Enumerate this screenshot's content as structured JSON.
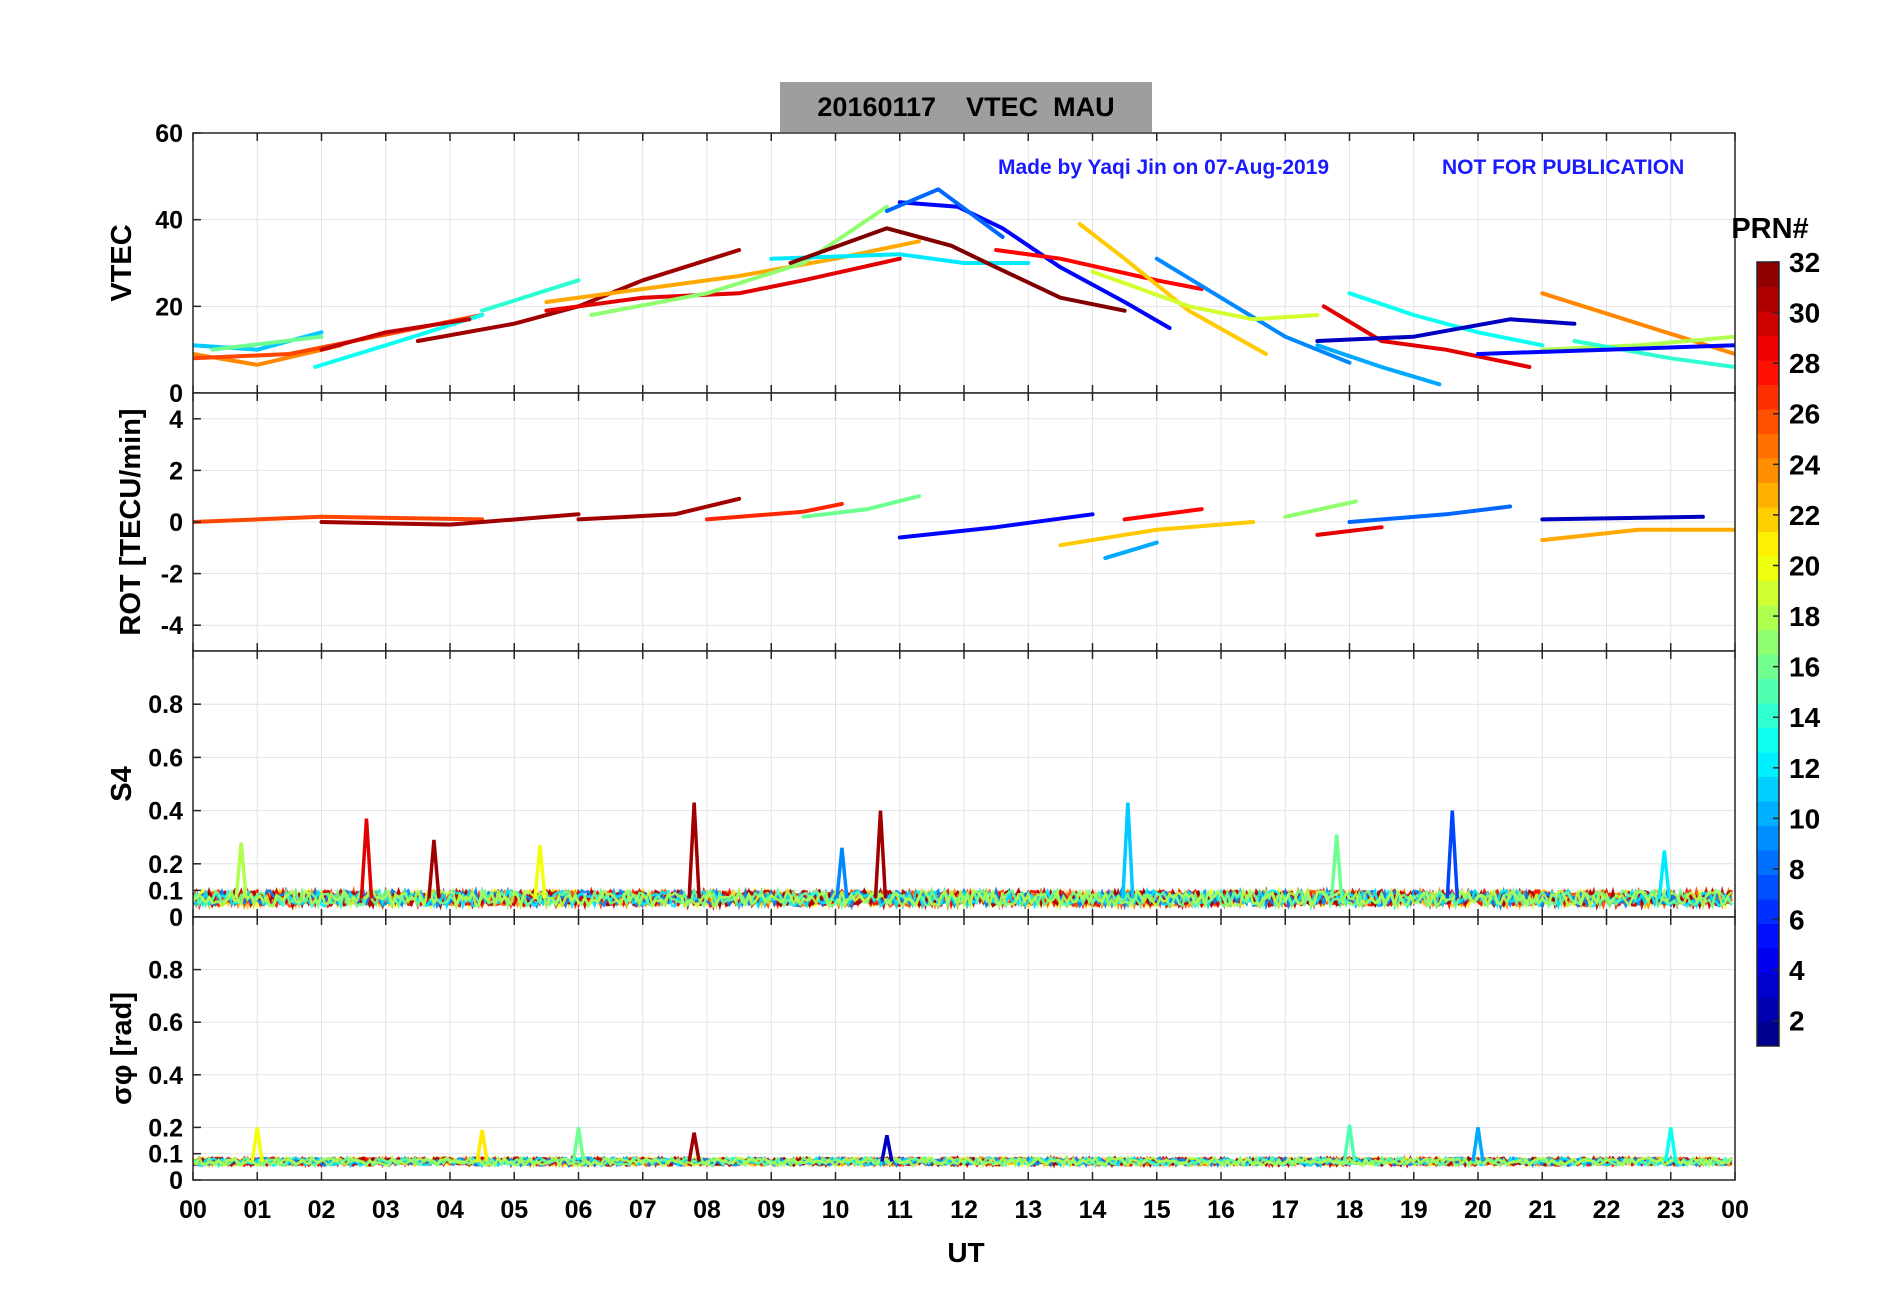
{
  "title": {
    "date": "20160117",
    "quantity": "VTEC",
    "station": "MAU"
  },
  "watermark": {
    "made_by": "Made by Yaqi Jin on 07-Aug-2019",
    "notice": "NOT FOR PUBLICATION"
  },
  "chart_data": [
    {
      "type": "line",
      "panel": "VTEC",
      "ylabel": "VTEC",
      "ylim": [
        0,
        60
      ],
      "yticks": [
        0,
        20,
        40,
        60
      ],
      "grid": true,
      "series": [
        {
          "prn": 11,
          "x": [
            0.0,
            1.0,
            2.0
          ],
          "y": [
            11,
            10,
            14
          ]
        },
        {
          "prn": 24,
          "x": [
            0.0,
            1.0,
            2.3
          ],
          "y": [
            9,
            6.5,
            11
          ]
        },
        {
          "prn": 26,
          "x": [
            0.0,
            1.5,
            3.5,
            4.5
          ],
          "y": [
            8,
            9,
            15,
            18
          ]
        },
        {
          "prn": 16,
          "x": [
            0.3,
            2.0
          ],
          "y": [
            10,
            13
          ]
        },
        {
          "prn": 13,
          "x": [
            1.9,
            3.0,
            4.5
          ],
          "y": [
            6,
            11,
            18
          ]
        },
        {
          "prn": 30,
          "x": [
            2.0,
            3.0,
            4.3
          ],
          "y": [
            10,
            14,
            17
          ]
        },
        {
          "prn": 14,
          "x": [
            4.5,
            6.0
          ],
          "y": [
            19,
            26
          ]
        },
        {
          "prn": 31,
          "x": [
            3.5,
            5.0,
            6.0,
            7.0,
            8.5
          ],
          "y": [
            12,
            16,
            20,
            26,
            33
          ]
        },
        {
          "prn": 29,
          "x": [
            5.5,
            7.0,
            8.5,
            9.5,
            11.0
          ],
          "y": [
            19,
            22,
            23,
            26,
            31
          ]
        },
        {
          "prn": 23,
          "x": [
            5.5,
            7.0,
            8.5,
            10.0,
            11.3
          ],
          "y": [
            21,
            24,
            27,
            31,
            35
          ]
        },
        {
          "prn": 17,
          "x": [
            6.2,
            8.0,
            9.5,
            10.8
          ],
          "y": [
            18,
            23,
            30,
            43
          ]
        },
        {
          "prn": 12,
          "x": [
            9.0,
            11.0,
            12.0,
            13.0
          ],
          "y": [
            31,
            32,
            30,
            30
          ]
        },
        {
          "prn": 32,
          "x": [
            9.3,
            10.8,
            11.8,
            12.5,
            13.5,
            14.5
          ],
          "y": [
            30,
            38,
            34,
            29,
            22,
            19
          ]
        },
        {
          "prn": 5,
          "x": [
            11.0,
            11.9,
            12.6,
            13.5,
            14.5,
            15.2
          ],
          "y": [
            44,
            43,
            38,
            29,
            21,
            15
          ]
        },
        {
          "prn": 8,
          "x": [
            10.8,
            11.6,
            12.6
          ],
          "y": [
            42,
            47,
            36
          ]
        },
        {
          "prn": 28,
          "x": [
            12.5,
            13.5,
            15.0,
            15.7
          ],
          "y": [
            33,
            31,
            26,
            24
          ]
        },
        {
          "prn": 22,
          "x": [
            13.8,
            14.5,
            15.5,
            16.7
          ],
          "y": [
            39,
            31,
            19,
            9
          ]
        },
        {
          "prn": 9,
          "x": [
            15.0,
            16.0,
            17.0,
            18.0
          ],
          "y": [
            31,
            22,
            13,
            7
          ]
        },
        {
          "prn": 19,
          "x": [
            14.0,
            15.5,
            16.5,
            17.5
          ],
          "y": [
            28,
            20,
            17,
            18
          ]
        },
        {
          "prn": 13,
          "x": [
            18.0,
            19.0,
            20.0,
            21.0
          ],
          "y": [
            23,
            18,
            14,
            11
          ]
        },
        {
          "prn": 29,
          "x": [
            17.6,
            18.5,
            19.5,
            20.8
          ],
          "y": [
            20,
            12,
            10,
            6
          ]
        },
        {
          "prn": 3,
          "x": [
            17.5,
            19.0,
            20.5,
            21.5
          ],
          "y": [
            12,
            13,
            17,
            16
          ]
        },
        {
          "prn": 10,
          "x": [
            17.5,
            18.5,
            19.4
          ],
          "y": [
            11,
            6,
            2
          ]
        },
        {
          "prn": 24,
          "x": [
            21.0,
            22.5,
            24.0
          ],
          "y": [
            23,
            16,
            9
          ]
        },
        {
          "prn": 18,
          "x": [
            21.0,
            22.5,
            24.0
          ],
          "y": [
            10,
            11,
            13
          ]
        },
        {
          "prn": 14,
          "x": [
            21.5,
            23.0,
            24.0
          ],
          "y": [
            12,
            8,
            6
          ]
        },
        {
          "prn": 5,
          "x": [
            20.0,
            22.0,
            24.0
          ],
          "y": [
            9,
            10,
            11
          ]
        }
      ]
    },
    {
      "type": "line",
      "panel": "ROT",
      "ylabel": "ROT [TECU/min]",
      "ylim": [
        -5,
        5
      ],
      "yticks": [
        -4,
        -2,
        0,
        2,
        4
      ],
      "grid": true,
      "series": [
        {
          "prn": 26,
          "x": [
            0.0,
            2.0,
            4.5
          ],
          "y": [
            0.0,
            0.2,
            0.1
          ]
        },
        {
          "prn": 31,
          "x": [
            2.0,
            4.0,
            6.0
          ],
          "y": [
            0.0,
            -0.1,
            0.3
          ]
        },
        {
          "prn": 31,
          "x": [
            6.0,
            7.5,
            8.5
          ],
          "y": [
            0.1,
            0.3,
            0.9
          ]
        },
        {
          "prn": 27,
          "x": [
            8.0,
            9.5,
            10.1
          ],
          "y": [
            0.1,
            0.4,
            0.7
          ]
        },
        {
          "prn": 16,
          "x": [
            9.5,
            10.5,
            11.3
          ],
          "y": [
            0.2,
            0.5,
            1.0
          ]
        },
        {
          "prn": 5,
          "x": [
            11.0,
            12.5,
            14.0
          ],
          "y": [
            -0.6,
            -0.2,
            0.3
          ]
        },
        {
          "prn": 22,
          "x": [
            13.5,
            15.0,
            16.5
          ],
          "y": [
            -0.9,
            -0.3,
            0.0
          ]
        },
        {
          "prn": 10,
          "x": [
            14.2,
            15.0
          ],
          "y": [
            -1.4,
            -0.8
          ]
        },
        {
          "prn": 28,
          "x": [
            14.5,
            15.7
          ],
          "y": [
            0.1,
            0.5
          ]
        },
        {
          "prn": 17,
          "x": [
            17.0,
            18.1
          ],
          "y": [
            0.2,
            0.8
          ]
        },
        {
          "prn": 29,
          "x": [
            17.5,
            18.5
          ],
          "y": [
            -0.5,
            -0.2
          ]
        },
        {
          "prn": 8,
          "x": [
            18.0,
            19.5,
            20.5
          ],
          "y": [
            0.0,
            0.3,
            0.6
          ]
        },
        {
          "prn": 23,
          "x": [
            21.0,
            22.5,
            24.0
          ],
          "y": [
            -0.7,
            -0.3,
            -0.3
          ]
        },
        {
          "prn": 3,
          "x": [
            21.0,
            23.5
          ],
          "y": [
            0.1,
            0.2
          ]
        }
      ]
    },
    {
      "type": "line",
      "panel": "S4",
      "ylabel": "S4",
      "ylim": [
        0,
        1
      ],
      "yticks": [
        0,
        0.1,
        0.2,
        0.4,
        0.6,
        0.8
      ],
      "grid": true,
      "baseline": 0.07,
      "spikes": [
        {
          "prn": 18,
          "x": 0.75,
          "y": 0.28
        },
        {
          "prn": 29,
          "x": 2.7,
          "y": 0.37
        },
        {
          "prn": 31,
          "x": 3.75,
          "y": 0.29
        },
        {
          "prn": 20,
          "x": 5.4,
          "y": 0.27
        },
        {
          "prn": 31,
          "x": 7.8,
          "y": 0.43
        },
        {
          "prn": 9,
          "x": 10.1,
          "y": 0.26
        },
        {
          "prn": 31,
          "x": 10.7,
          "y": 0.4
        },
        {
          "prn": 11,
          "x": 14.55,
          "y": 0.43
        },
        {
          "prn": 16,
          "x": 17.8,
          "y": 0.31
        },
        {
          "prn": 7,
          "x": 19.6,
          "y": 0.4
        },
        {
          "prn": 12,
          "x": 22.9,
          "y": 0.25
        }
      ]
    },
    {
      "type": "line",
      "panel": "sigma_phi",
      "ylabel": "σφ [rad]",
      "ylim": [
        0,
        1
      ],
      "yticks": [
        0,
        0.1,
        0.2,
        0.4,
        0.6,
        0.8
      ],
      "grid": true,
      "baseline": 0.07,
      "spikes": [
        {
          "prn": 20,
          "x": 1.0,
          "y": 0.2
        },
        {
          "prn": 21,
          "x": 4.5,
          "y": 0.19
        },
        {
          "prn": 16,
          "x": 6.0,
          "y": 0.2
        },
        {
          "prn": 31,
          "x": 7.8,
          "y": 0.18
        },
        {
          "prn": 3,
          "x": 10.8,
          "y": 0.17
        },
        {
          "prn": 15,
          "x": 18.0,
          "y": 0.21
        },
        {
          "prn": 10,
          "x": 20.0,
          "y": 0.2
        },
        {
          "prn": 13,
          "x": 23.0,
          "y": 0.2
        }
      ]
    }
  ],
  "x_axis": {
    "label": "UT",
    "ticks": [
      "00",
      "01",
      "02",
      "03",
      "04",
      "05",
      "06",
      "07",
      "08",
      "09",
      "10",
      "11",
      "12",
      "13",
      "14",
      "15",
      "16",
      "17",
      "18",
      "19",
      "20",
      "21",
      "22",
      "23",
      "00"
    ],
    "range_hours": [
      0,
      24
    ]
  },
  "colorbar": {
    "label": "PRN#",
    "range": [
      1,
      32
    ],
    "ticks": [
      2,
      4,
      6,
      8,
      10,
      12,
      14,
      16,
      18,
      20,
      22,
      24,
      26,
      28,
      30,
      32
    ],
    "colormap": "jet"
  }
}
